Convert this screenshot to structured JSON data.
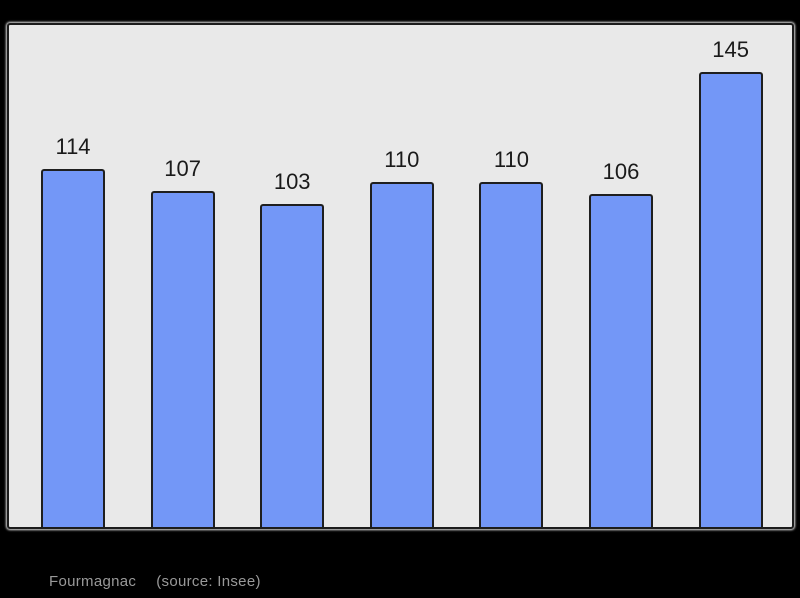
{
  "chart_data": {
    "type": "bar",
    "values": [
      114,
      107,
      103,
      110,
      110,
      106,
      145
    ],
    "title": "",
    "xlabel": "",
    "ylabel": "",
    "ylim": [
      0,
      160
    ],
    "grid": false,
    "legend": false,
    "bar_color": "#7397f7",
    "bar_border_color": "#1f1f1f",
    "plot_background": "#e9e9e9",
    "page_background": "#000000",
    "value_label_color": "#1a1a1a"
  },
  "caption": {
    "place": "Fourmagnac",
    "source": "(source: Insee)",
    "color": "#999999"
  }
}
